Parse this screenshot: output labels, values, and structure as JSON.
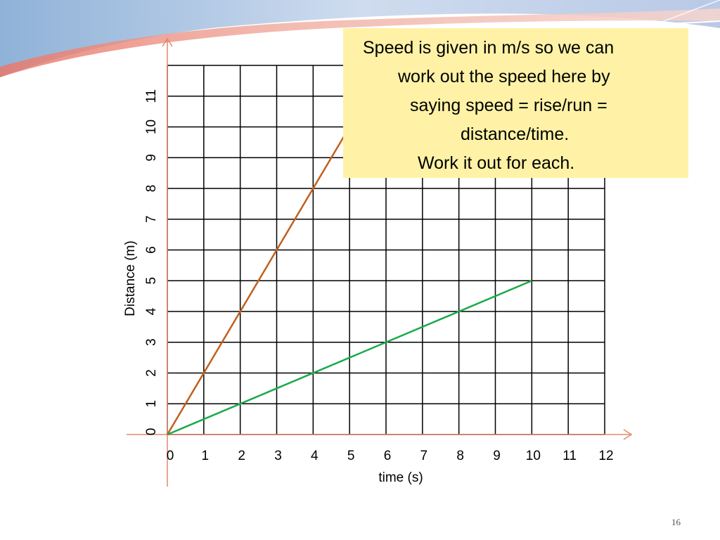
{
  "callout": {
    "line1": "Speed is given in m/s so we can",
    "line2": "work out the speed here by",
    "line3": "saying speed = rise/run =",
    "line4": "distance/time.",
    "line5": "Work it out for each."
  },
  "slide_number": "16",
  "colors": {
    "series1": "#c0601e",
    "series2": "#1aaa4a",
    "axis_arrow": "#e08a6a",
    "grid": "#000000",
    "callout_bg": "#fff2a6"
  },
  "chart_data": {
    "type": "line",
    "xlabel": "time (s)",
    "ylabel": "Distance (m)",
    "x_ticks": [
      "0",
      "1",
      "2",
      "3",
      "4",
      "5",
      "6",
      "7",
      "8",
      "9",
      "10",
      "11",
      "12"
    ],
    "y_ticks": [
      "0",
      "1",
      "2",
      "3",
      "4",
      "5",
      "6",
      "7",
      "8",
      "9",
      "10",
      "11"
    ],
    "xlim": [
      0,
      12
    ],
    "ylim": [
      0,
      12
    ],
    "grid": true,
    "series": [
      {
        "x": [
          0,
          5
        ],
        "y": [
          0,
          10
        ],
        "color": "#c0601e"
      },
      {
        "x": [
          0,
          10
        ],
        "y": [
          0,
          5
        ],
        "color": "#1aaa4a"
      }
    ]
  }
}
